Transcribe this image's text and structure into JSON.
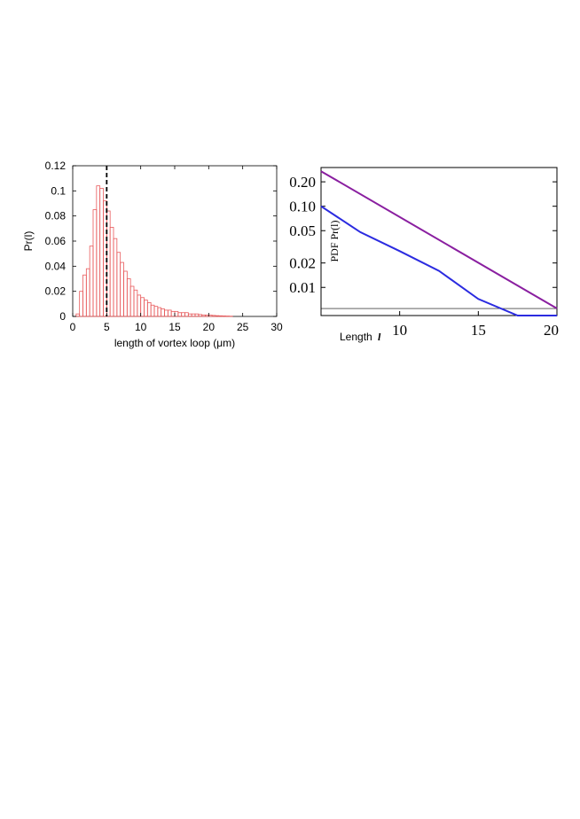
{
  "chart_data": [
    {
      "type": "bar",
      "xlabel": "length of vortex loop (μm)",
      "ylabel": "Pr(l)",
      "xlim": [
        0,
        30
      ],
      "ylim": [
        0,
        0.12
      ],
      "xticks": [
        "0",
        "5",
        "10",
        "15",
        "20",
        "25",
        "30"
      ],
      "yticks": [
        "0",
        "0.02",
        "0.04",
        "0.06",
        "0.08",
        "0.1",
        "0.12"
      ],
      "bin_width": 0.5,
      "bin_start": 0.5,
      "values": [
        0.002,
        0.02,
        0.033,
        0.038,
        0.056,
        0.085,
        0.104,
        0.102,
        0.092,
        0.084,
        0.071,
        0.062,
        0.051,
        0.043,
        0.036,
        0.03,
        0.024,
        0.021,
        0.017,
        0.015,
        0.013,
        0.011,
        0.009,
        0.008,
        0.007,
        0.006,
        0.005,
        0.005,
        0.004,
        0.004,
        0.003,
        0.003,
        0.003,
        0.002,
        0.002,
        0.002,
        0.0015,
        0.0012,
        0.001,
        0.001,
        0.0008,
        0.0006,
        0.0005,
        0.0004,
        0.0003,
        0.0002
      ],
      "bar_color": "#e8595b",
      "marker_line_x": 5,
      "grid": false
    },
    {
      "type": "line",
      "xlabel_text": "Length",
      "xlabel_var": "l",
      "ylabel": "PDF Pr(l)",
      "xlim": [
        5,
        20
      ],
      "ylim": [
        0.0045,
        0.3
      ],
      "yscale": "log",
      "xticks": [
        10,
        15,
        20
      ],
      "yticks": [
        0.2,
        0.1,
        0.05,
        0.02,
        0.01
      ],
      "ytick_labels": [
        "0.20",
        "0.10",
        "0.05",
        "0.02",
        "0.01"
      ],
      "reference_line_y": 0.0055,
      "grid": false,
      "series": [
        {
          "color": "#8a1fa0",
          "x": [
            5,
            20
          ],
          "y": [
            0.27,
            0.0055
          ]
        },
        {
          "color": "#2b2be0",
          "x": [
            5,
            7.5,
            10,
            12.5,
            15,
            17.5,
            20
          ],
          "y": [
            0.1,
            0.048,
            0.028,
            0.016,
            0.0072,
            0.0042,
            0.0027
          ]
        }
      ]
    }
  ]
}
